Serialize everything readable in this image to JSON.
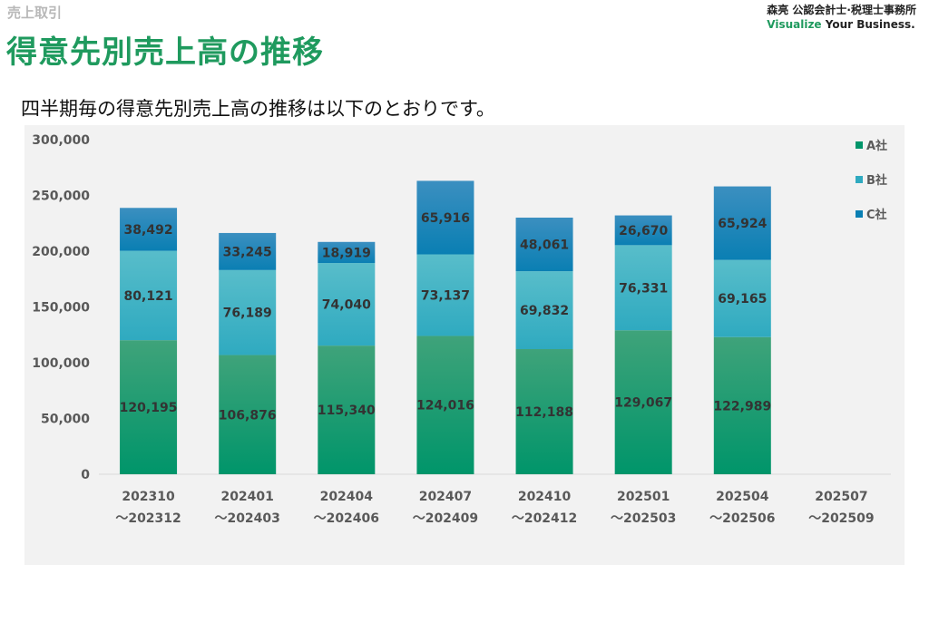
{
  "header": {
    "breadcrumb": "売上取引",
    "title": "得意先別売上高の推移",
    "brand_name": "森亮 公認会計士·税理士事務所",
    "brand_tag_accent": "Visualize",
    "brand_tag_rest": " Your Business."
  },
  "subtitle": "四半期毎の得意先別売上高の推移は以下のとおりです。",
  "colors": {
    "a_top": "#3fa37a",
    "a_bottom": "#00956a",
    "b_top": "#58bdca",
    "b_bottom": "#2faac0",
    "c_top": "#3b8fc0",
    "c_bottom": "#0a7fb3",
    "title": "#1f9a5e"
  },
  "chart_data": {
    "type": "bar",
    "stacked": true,
    "categories": [
      [
        "202310",
        "～202312"
      ],
      [
        "202401",
        "～202403"
      ],
      [
        "202404",
        "～202406"
      ],
      [
        "202407",
        "～202409"
      ],
      [
        "202410",
        "～202412"
      ],
      [
        "202501",
        "～202503"
      ],
      [
        "202504",
        "～202506"
      ],
      [
        "202507",
        "～202509"
      ]
    ],
    "series": [
      {
        "name": "A社",
        "values": [
          120195,
          106876,
          115340,
          124016,
          112188,
          129067,
          122989,
          null
        ]
      },
      {
        "name": "B社",
        "values": [
          80121,
          76189,
          74040,
          73137,
          69832,
          76331,
          69165,
          null
        ]
      },
      {
        "name": "C社",
        "values": [
          38492,
          33245,
          18919,
          65916,
          48061,
          26670,
          65924,
          null
        ]
      }
    ],
    "yticks": [
      "0",
      "50,000",
      "100,000",
      "150,000",
      "200,000",
      "250,000",
      "300,000"
    ],
    "ylim": [
      0,
      300000
    ],
    "legend_position": "top-right",
    "grid": false
  }
}
